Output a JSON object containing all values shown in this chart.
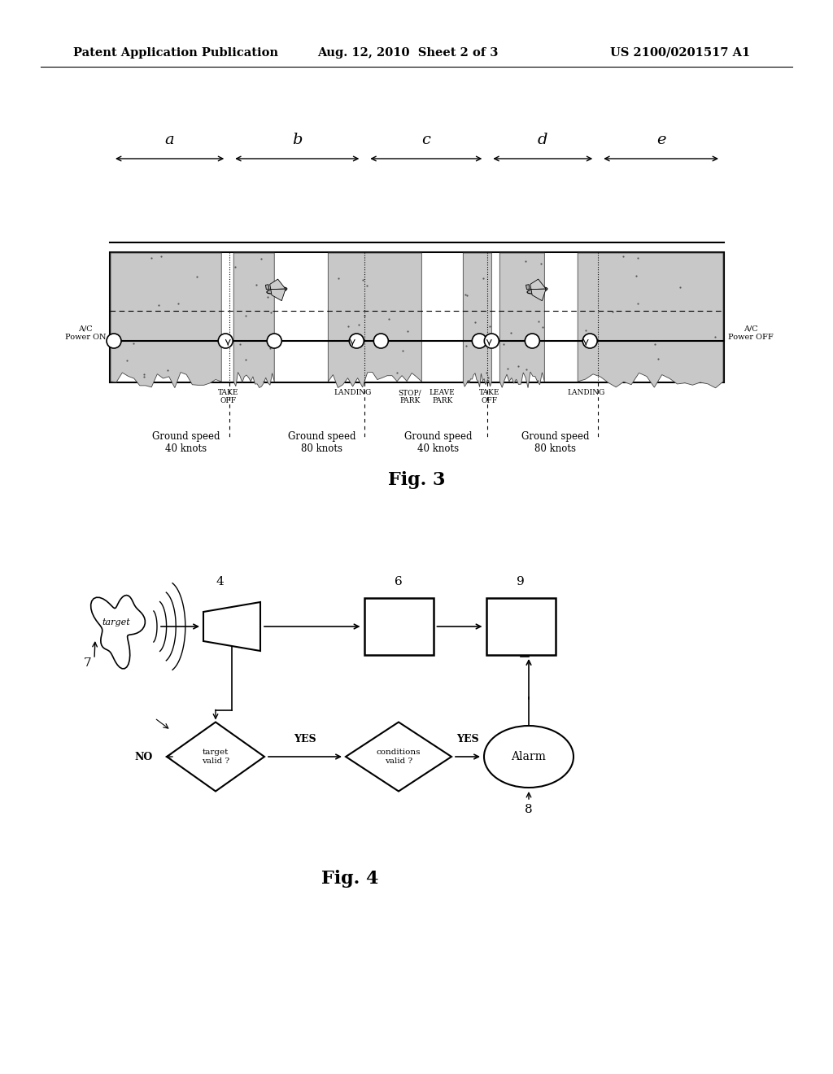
{
  "header_left": "Patent Application Publication",
  "header_center": "Aug. 12, 2010  Sheet 2 of 3",
  "header_right": "US 2100/0201517 A1",
  "fig3_label": "Fig. 3",
  "fig4_label": "Fig. 4",
  "fig3_sections": [
    "a",
    "b",
    "c",
    "d",
    "e"
  ],
  "section_boundaries_rel": [
    0.0,
    0.195,
    0.415,
    0.615,
    0.795,
    1.0
  ],
  "background_color": "#ffffff"
}
